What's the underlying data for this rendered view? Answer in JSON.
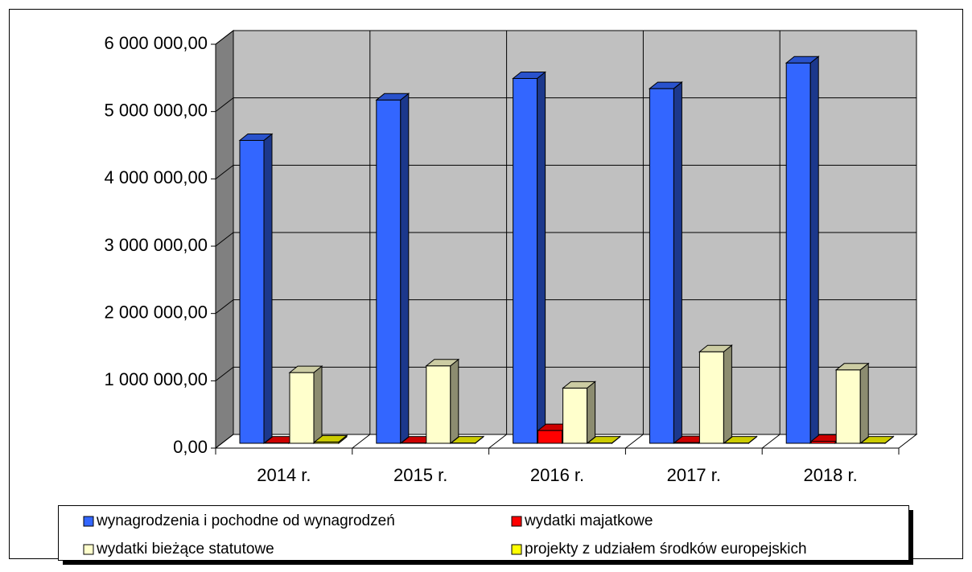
{
  "chart_data": {
    "type": "bar3d",
    "categories": [
      "2014 r.",
      "2015 r.",
      "2016 r.",
      "2017 r.",
      "2018 r."
    ],
    "series": [
      {
        "name": "wynagrodzenia i pochodne od wynagrodzeń",
        "color": "#3366ff",
        "values": [
          4500000,
          5100000,
          5420000,
          5270000,
          5650000
        ]
      },
      {
        "name": "wydatki majatkowe",
        "color": "#ff0000",
        "values": [
          5000,
          5000,
          190000,
          10000,
          30000
        ]
      },
      {
        "name": "wydatki bieżące statutowe",
        "color": "#ffffcc",
        "values": [
          1050000,
          1150000,
          820000,
          1360000,
          1090000
        ]
      },
      {
        "name": "projekty z udziałem środków europejskich",
        "color": "#ffff00",
        "values": [
          20000,
          5000,
          5000,
          5000,
          5000
        ]
      }
    ],
    "ylim": [
      0,
      6000000
    ],
    "yticks": [
      {
        "value": 0,
        "label": "0,00"
      },
      {
        "value": 1000000,
        "label": "1 000 000,00"
      },
      {
        "value": 2000000,
        "label": "2 000 000,00"
      },
      {
        "value": 3000000,
        "label": "3 000 000,00"
      },
      {
        "value": 4000000,
        "label": "4 000 000,00"
      },
      {
        "value": 5000000,
        "label": "5 000 000,00"
      },
      {
        "value": 6000000,
        "label": "6 000 000,00"
      }
    ],
    "grid": true,
    "legend": "bottom"
  }
}
